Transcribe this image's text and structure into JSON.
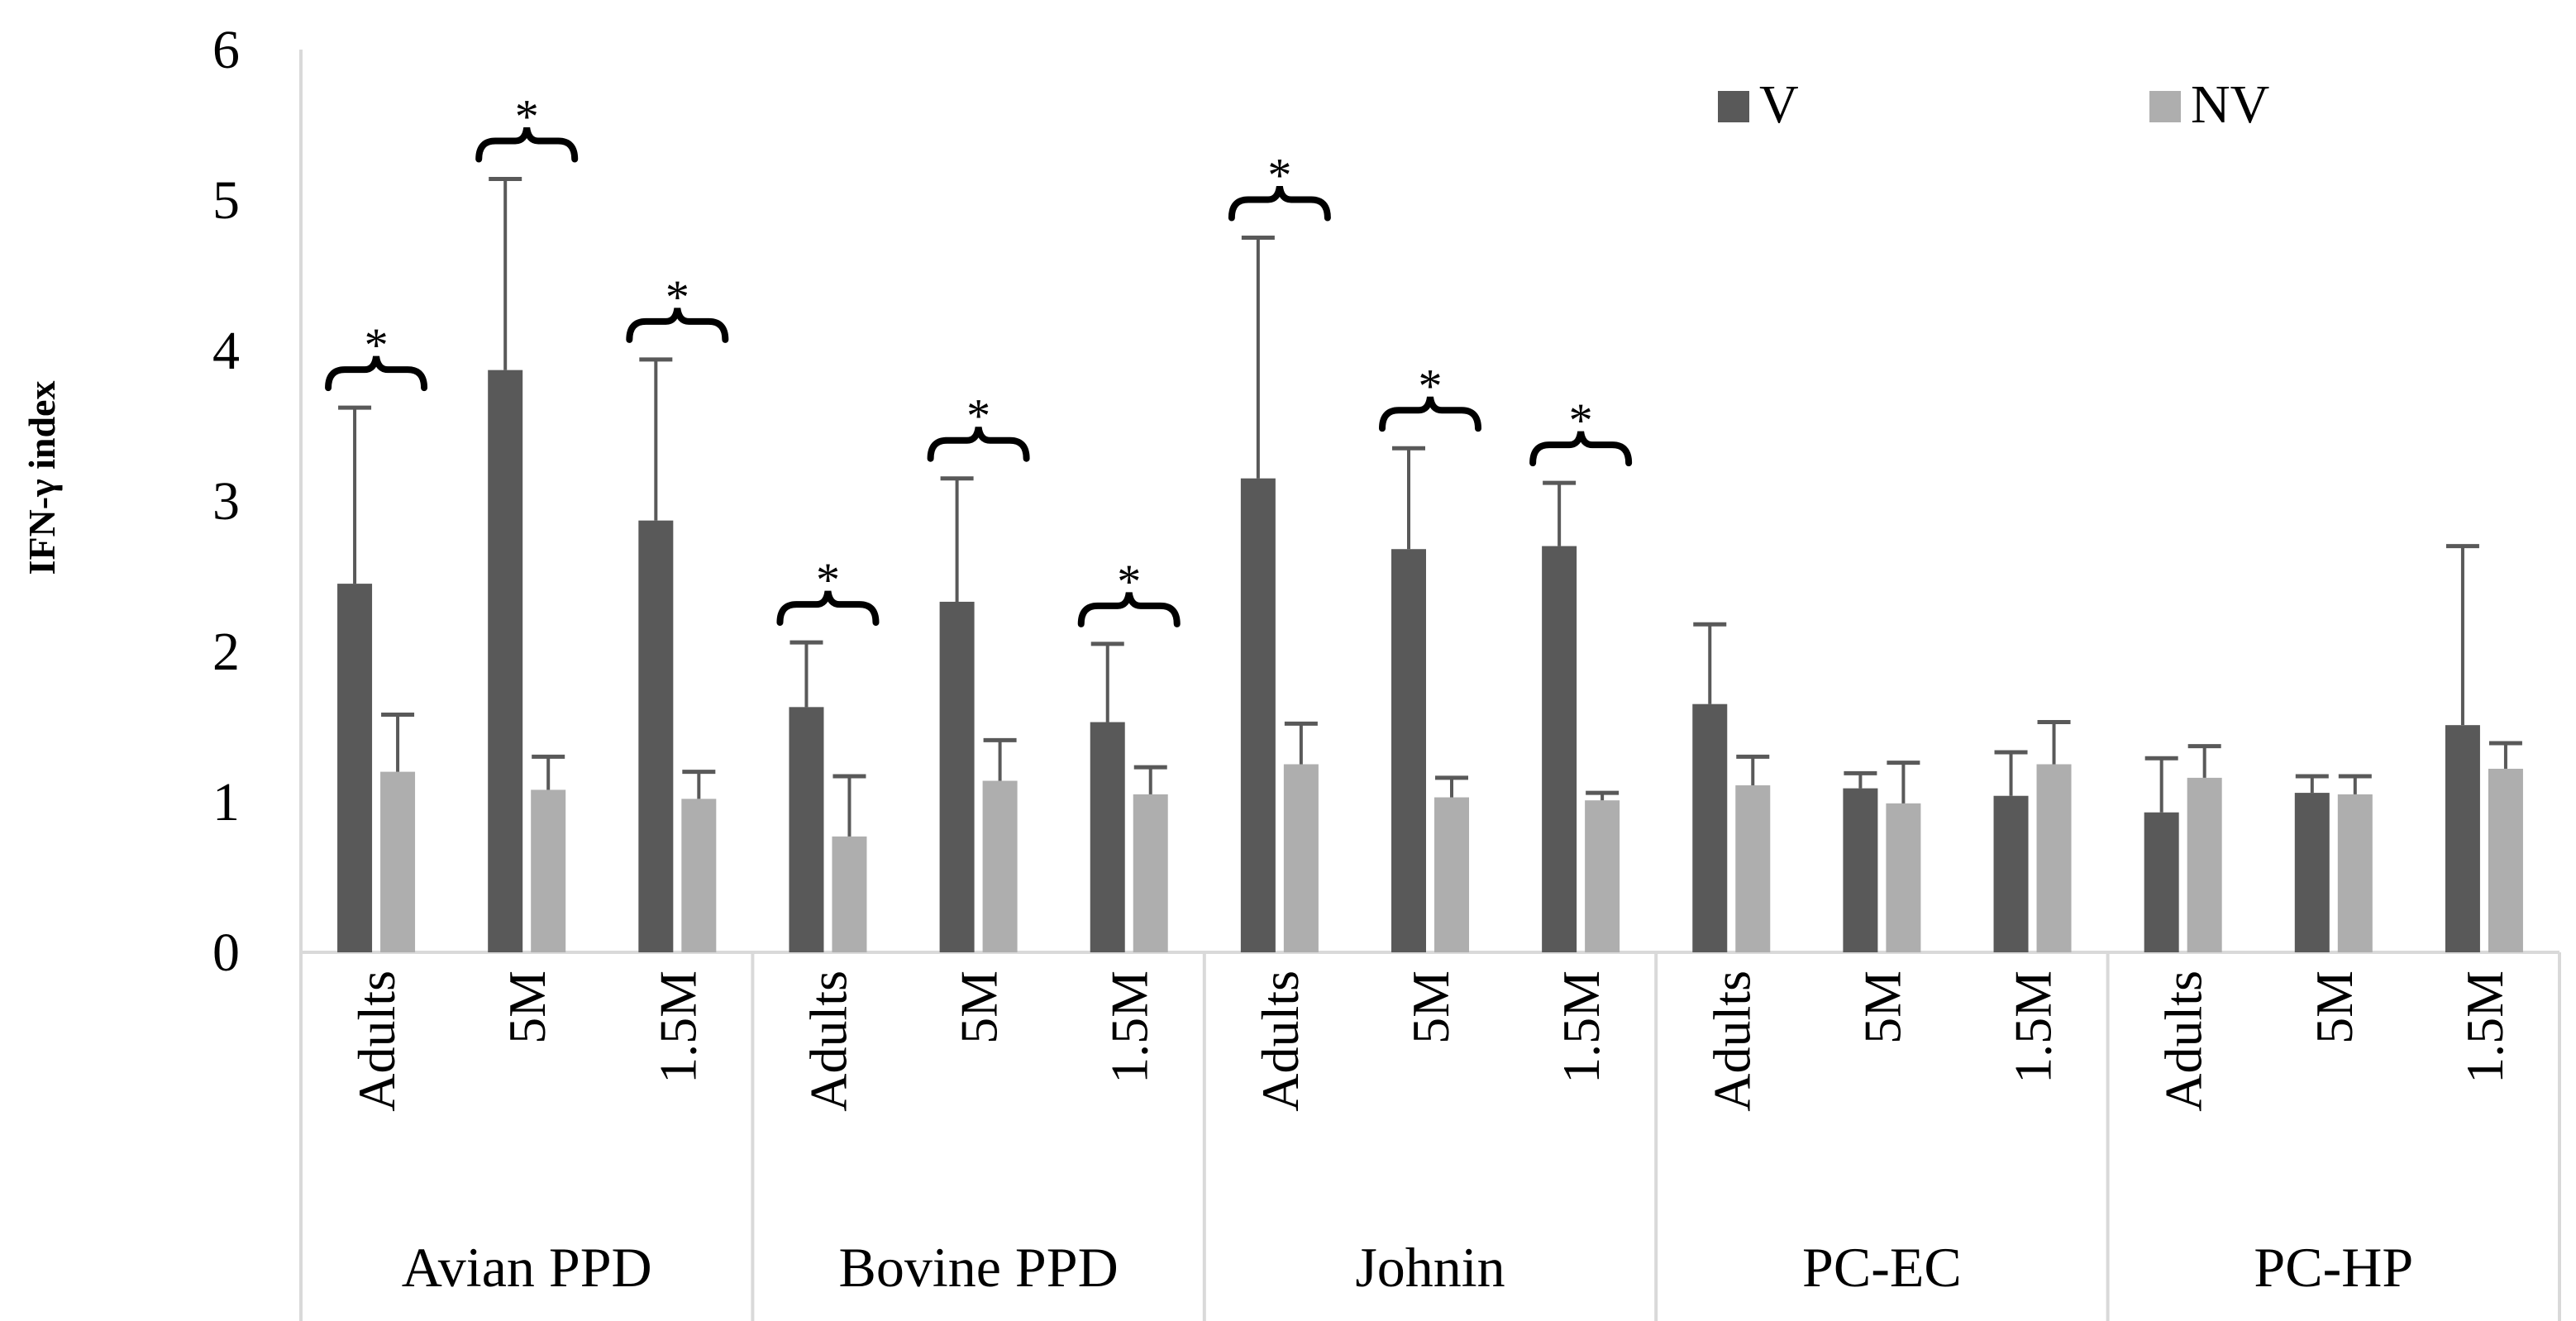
{
  "chart_data": {
    "type": "bar",
    "title": "",
    "ylabel": "IFN-γ index",
    "xlabel": "",
    "ylim": [
      0,
      6
    ],
    "yticks": [
      0,
      1,
      2,
      3,
      4,
      5,
      6
    ],
    "grid": false,
    "legend_position": "top-right",
    "colors": {
      "V": "#595959",
      "NV": "#aeaeae",
      "axis": "#d9d9d9",
      "error": "#595959",
      "text": "#000000"
    },
    "groups": [
      {
        "label": "Avian PPD",
        "categories": [
          {
            "label": "Adults",
            "V": 2.45,
            "V_err": 1.17,
            "NV": 1.2,
            "NV_err": 0.38,
            "sig": "*"
          },
          {
            "label": "5M",
            "V": 3.87,
            "V_err": 1.27,
            "NV": 1.08,
            "NV_err": 0.22,
            "sig": "*"
          },
          {
            "label": "1.5M",
            "V": 2.87,
            "V_err": 1.07,
            "NV": 1.02,
            "NV_err": 0.18,
            "sig": "*"
          }
        ]
      },
      {
        "label": "Bovine PPD",
        "categories": [
          {
            "label": "Adults",
            "V": 1.63,
            "V_err": 0.43,
            "NV": 0.77,
            "NV_err": 0.4,
            "sig": "*"
          },
          {
            "label": "5M",
            "V": 2.33,
            "V_err": 0.82,
            "NV": 1.14,
            "NV_err": 0.27,
            "sig": "*"
          },
          {
            "label": "1.5M",
            "V": 1.53,
            "V_err": 0.52,
            "NV": 1.05,
            "NV_err": 0.18,
            "sig": "*"
          }
        ]
      },
      {
        "label": "Johnin",
        "categories": [
          {
            "label": "Adults",
            "V": 3.15,
            "V_err": 1.6,
            "NV": 1.25,
            "NV_err": 0.27,
            "sig": "*"
          },
          {
            "label": "5M",
            "V": 2.68,
            "V_err": 0.67,
            "NV": 1.03,
            "NV_err": 0.13,
            "sig": "*"
          },
          {
            "label": "1.5M",
            "V": 2.7,
            "V_err": 0.42,
            "NV": 1.01,
            "NV_err": 0.05,
            "sig": "*"
          }
        ]
      },
      {
        "label": "PC-EC",
        "categories": [
          {
            "label": "Adults",
            "V": 1.65,
            "V_err": 0.53,
            "NV": 1.11,
            "NV_err": 0.19,
            "sig": ""
          },
          {
            "label": "5M",
            "V": 1.09,
            "V_err": 0.1,
            "NV": 0.99,
            "NV_err": 0.27,
            "sig": ""
          },
          {
            "label": "1.5M",
            "V": 1.04,
            "V_err": 0.29,
            "NV": 1.25,
            "NV_err": 0.28,
            "sig": ""
          }
        ]
      },
      {
        "label": "PC-HP",
        "categories": [
          {
            "label": "Adults",
            "V": 0.93,
            "V_err": 0.36,
            "NV": 1.16,
            "NV_err": 0.21,
            "sig": ""
          },
          {
            "label": "5M",
            "V": 1.06,
            "V_err": 0.11,
            "NV": 1.05,
            "NV_err": 0.12,
            "sig": ""
          },
          {
            "label": "1.5M",
            "V": 1.51,
            "V_err": 1.19,
            "NV": 1.22,
            "NV_err": 0.17,
            "sig": ""
          }
        ]
      }
    ],
    "series": [
      {
        "name": "V",
        "key": "V"
      },
      {
        "name": "NV",
        "key": "NV"
      }
    ]
  }
}
